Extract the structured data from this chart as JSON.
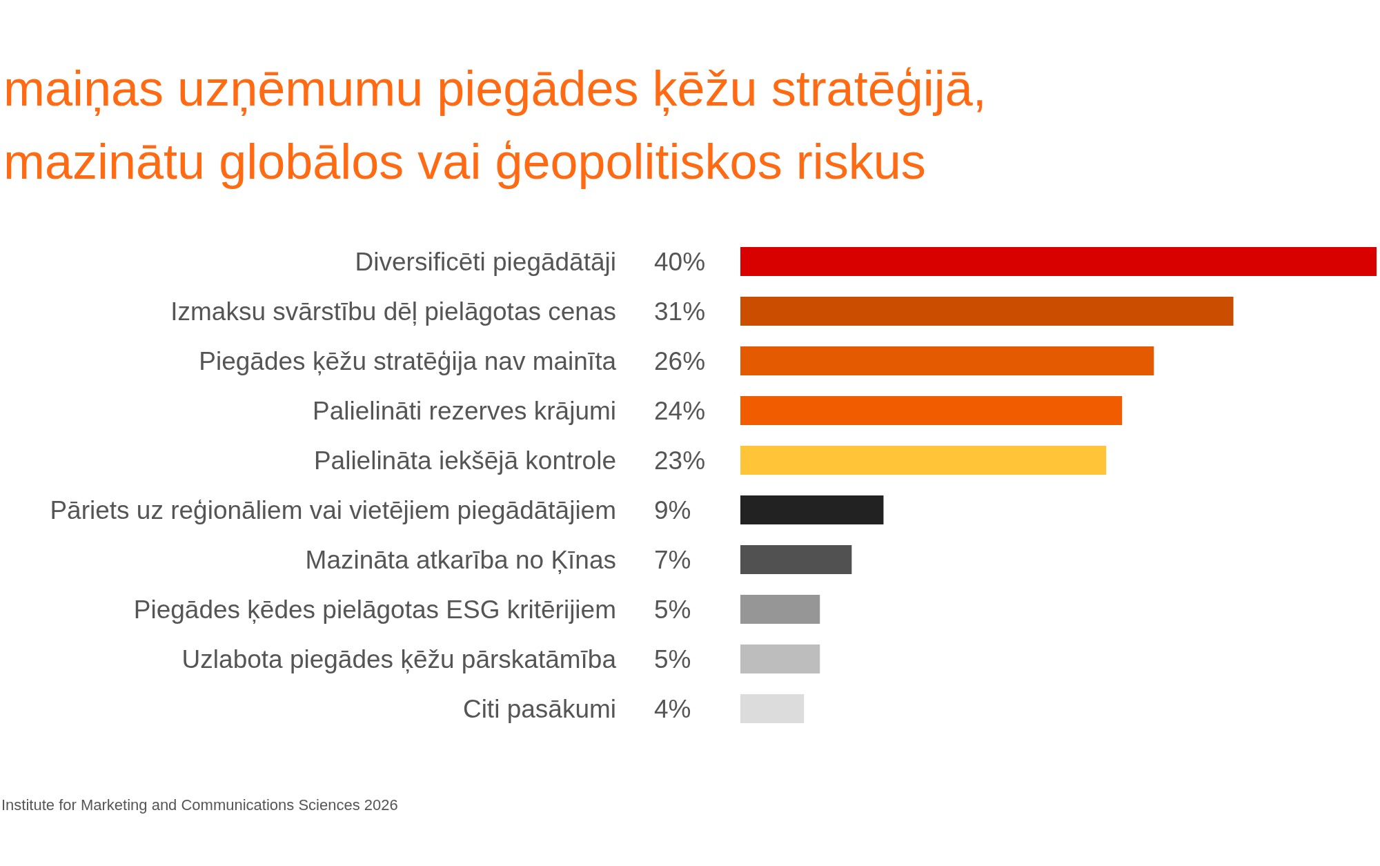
{
  "chart_data": {
    "type": "bar",
    "orientation": "horizontal",
    "title": "maiņas uzņēmumu piegādes ķēžu stratēģijā,\nmazinātu globālos vai ģeopolitiskos riskus",
    "categories": [
      "Diversificēti piegādātāji",
      "Izmaksu svārstību dēļ pielāgotas cenas",
      "Piegādes ķēžu stratēģija nav mainīta",
      "Palielināti rezerves krājumi",
      "Palielināta iekšējā kontrole",
      "Pāriets uz reģionāliem vai vietējiem piegādātājiem",
      "Mazināta atkarība no Ķīnas",
      "Piegādes ķēdes pielāgotas ESG kritērijiem",
      "Uzlabota piegādes ķēžu pārskatāmība",
      "Citi pasākumi"
    ],
    "values": [
      40,
      31,
      26,
      24,
      23,
      9,
      7,
      5,
      5,
      4
    ],
    "value_labels": [
      "40%",
      "31%",
      "26%",
      "24%",
      "23%",
      "9%",
      "7%",
      "5%",
      "5%",
      "4%"
    ],
    "colors": [
      "#d90000",
      "#cb4e00",
      "#e35a00",
      "#f25c00",
      "#ffc438",
      "#222222",
      "#515151",
      "#969696",
      "#bdbdbd",
      "#dcdcdc"
    ],
    "annotations": [
      "Institute for Marketing and Communications Sciences 2026"
    ]
  }
}
